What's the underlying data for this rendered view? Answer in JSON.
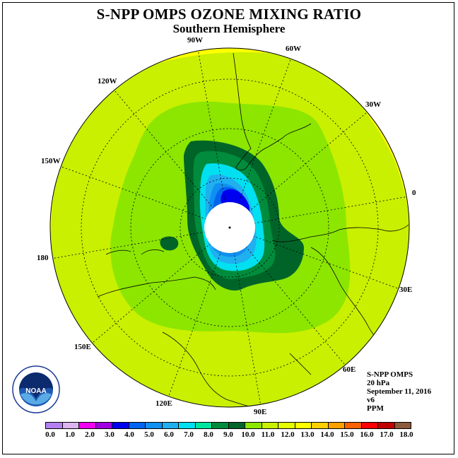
{
  "title": "S-NPP OMPS OZONE MIXING RATIO",
  "subtitle": "Southern Hemisphere",
  "longitude_labels": {
    "w90": "90W",
    "w60": "60W",
    "w120": "120W",
    "w30": "30W",
    "w150": "150W",
    "e0": "0",
    "e180": "180",
    "e30": "30E",
    "e150": "150E",
    "e60": "60E",
    "e120": "120E",
    "e90": "90E"
  },
  "info": {
    "instrument": "S-NPP OMPS",
    "level": "20 hPa",
    "date": "September 11, 2016",
    "version": "v6",
    "units": "PPM"
  },
  "logo": {
    "text": "NOAA",
    "icon": "noaa-logo"
  },
  "colorbar": {
    "colors": [
      "#b480f0",
      "#dcb4f0",
      "#f000f0",
      "#a000e0",
      "#0000f0",
      "#0064f0",
      "#1090f0",
      "#20b0f0",
      "#00e0f0",
      "#00e6a0",
      "#008c3c",
      "#006428",
      "#8ce600",
      "#c8f000",
      "#e6ff00",
      "#ffff00",
      "#ffd000",
      "#ffa000",
      "#ff6000",
      "#ff0000",
      "#c00000",
      "#8c5a3c"
    ],
    "labels": [
      "0.0",
      "1.0",
      "2.0",
      "3.0",
      "4.0",
      "5.0",
      "6.0",
      "7.0",
      "8.0",
      "9.0",
      "10.0",
      "11.0",
      "12.0",
      "13.0",
      "14.0",
      "15.0",
      "16.0",
      "17.0",
      "18.0"
    ]
  }
}
